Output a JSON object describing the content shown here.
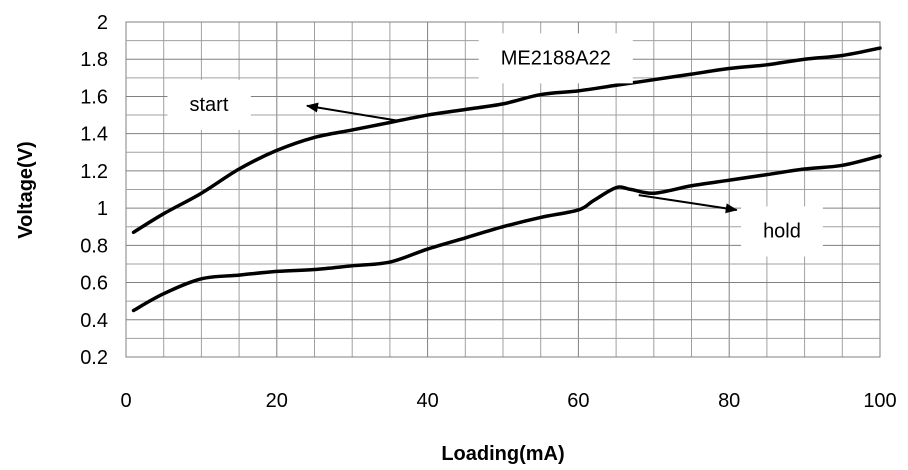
{
  "chart_data": {
    "type": "line",
    "title": "",
    "xlabel": "Loading(mA)",
    "ylabel": "Voltage(V)",
    "xlim": [
      0,
      100
    ],
    "ylim": [
      0.2,
      2.0
    ],
    "x_ticks": [
      0,
      20,
      40,
      60,
      80,
      100
    ],
    "x_tick_labels": [
      "0",
      "20",
      "40",
      "60",
      "80",
      "100"
    ],
    "y_ticks": [
      0.2,
      0.4,
      0.6,
      0.8,
      1.0,
      1.2,
      1.4,
      1.6,
      1.8,
      2.0
    ],
    "y_tick_labels": [
      "0.2",
      "0.4",
      "0.6",
      "0.8",
      "1",
      "1.2",
      "1.4",
      "1.6",
      "1.8",
      "2"
    ],
    "grid": true,
    "series": [
      {
        "name": "start",
        "color": "#000000",
        "x": [
          1,
          5,
          10,
          15,
          20,
          25,
          30,
          35,
          40,
          45,
          50,
          55,
          60,
          65,
          70,
          75,
          80,
          85,
          90,
          95,
          100
        ],
        "y": [
          0.87,
          0.97,
          1.08,
          1.21,
          1.31,
          1.38,
          1.42,
          1.46,
          1.5,
          1.53,
          1.56,
          1.61,
          1.63,
          1.66,
          1.69,
          1.72,
          1.75,
          1.77,
          1.8,
          1.82,
          1.86
        ]
      },
      {
        "name": "hold",
        "color": "#000000",
        "x": [
          1,
          5,
          10,
          15,
          20,
          25,
          30,
          35,
          40,
          45,
          50,
          55,
          60,
          62,
          65,
          67,
          70,
          75,
          80,
          85,
          90,
          95,
          100
        ],
        "y": [
          0.45,
          0.54,
          0.62,
          0.64,
          0.66,
          0.67,
          0.69,
          0.71,
          0.78,
          0.84,
          0.9,
          0.95,
          0.99,
          1.04,
          1.11,
          1.1,
          1.08,
          1.12,
          1.15,
          1.18,
          1.21,
          1.23,
          1.28
        ]
      }
    ],
    "annotations": [
      {
        "text": "ME2188A22",
        "x": 57,
        "y": 1.81
      },
      {
        "text": "start",
        "x": 11,
        "y": 1.56,
        "arrow_to": [
          24,
          1.55
        ],
        "arrow_from": [
          36,
          1.47
        ]
      },
      {
        "text": "hold",
        "x": 87,
        "y": 0.88,
        "arrow_to": [
          81,
          0.99
        ],
        "arrow_from": [
          68,
          1.07
        ]
      }
    ]
  }
}
